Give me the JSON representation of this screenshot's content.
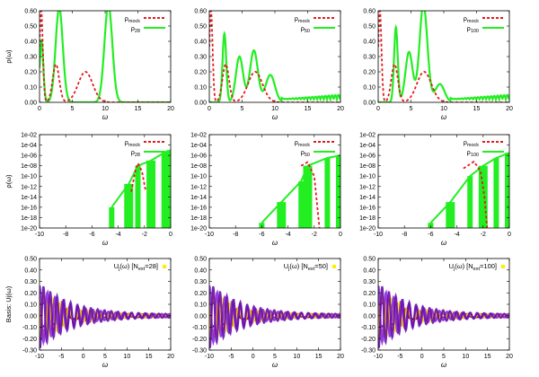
{
  "colors": {
    "mock": "#e41a1c",
    "recon": "#22ee22",
    "frame": "#000000"
  },
  "chart_data": [
    {
      "type": "line",
      "ylabel": "ρ(ω)",
      "xlabel": "ω",
      "xlim": [
        0,
        20
      ],
      "ylim": [
        0,
        0.6
      ],
      "xticks": [
        "0",
        "5",
        "10",
        "15",
        "20"
      ],
      "yticks": [
        "0.00",
        "0.10",
        "0.20",
        "0.30",
        "0.40",
        "0.50",
        "0.60"
      ],
      "series": [
        {
          "name": "ρmock",
          "peaks": [
            {
              "x": 0.25,
              "y": 0.6
            },
            {
              "x": 2.5,
              "y": 0.25
            },
            {
              "x": 7.0,
              "y": 0.2
            }
          ]
        },
        {
          "name": "ρ28",
          "peaks": [
            {
              "x": 0.3,
              "y": 0.4
            },
            {
              "x": 3.0,
              "y": 0.62
            },
            {
              "x": 10.5,
              "y": 0.64
            }
          ]
        }
      ],
      "legend": [
        {
          "base": "ρ",
          "sub": "mock",
          "kind": "mock"
        },
        {
          "base": "ρ",
          "sub": "28",
          "kind": "recon"
        }
      ]
    },
    {
      "type": "line",
      "ylabel": "",
      "xlabel": "ω",
      "xlim": [
        0,
        20
      ],
      "ylim": [
        0,
        0.6
      ],
      "xticks": [
        "0",
        "5",
        "10",
        "15",
        "20"
      ],
      "yticks": [
        "0.00",
        "0.10",
        "0.20",
        "0.30",
        "0.40",
        "0.50",
        "0.60"
      ],
      "series": [
        {
          "name": "ρmock",
          "peaks": [
            {
              "x": 0.25,
              "y": 0.6
            },
            {
              "x": 2.5,
              "y": 0.25
            },
            {
              "x": 7.0,
              "y": 0.2
            }
          ]
        },
        {
          "name": "ρ50",
          "peaks": [
            {
              "x": 2.3,
              "y": 0.45
            },
            {
              "x": 4.6,
              "y": 0.3
            },
            {
              "x": 6.8,
              "y": 0.34
            },
            {
              "x": 9.3,
              "y": 0.18
            }
          ]
        }
      ],
      "legend": [
        {
          "base": "ρ",
          "sub": "mock",
          "kind": "mock"
        },
        {
          "base": "ρ",
          "sub": "50",
          "kind": "recon"
        }
      ]
    },
    {
      "type": "line",
      "ylabel": "",
      "xlabel": "ω",
      "xlim": [
        0,
        20
      ],
      "ylim": [
        0,
        0.6
      ],
      "xticks": [
        "0",
        "5",
        "10",
        "15",
        "20"
      ],
      "yticks": [
        "0.00",
        "0.10",
        "0.20",
        "0.30",
        "0.40",
        "0.50",
        "0.60"
      ],
      "series": [
        {
          "name": "ρmock",
          "peaks": [
            {
              "x": 0.25,
              "y": 0.6
            },
            {
              "x": 2.5,
              "y": 0.25
            },
            {
              "x": 7.0,
              "y": 0.2
            }
          ]
        },
        {
          "name": "ρ100",
          "peaks": [
            {
              "x": 2.7,
              "y": 0.49
            },
            {
              "x": 4.7,
              "y": 0.33
            },
            {
              "x": 6.9,
              "y": 0.64
            },
            {
              "x": 9.4,
              "y": 0.12
            }
          ]
        }
      ],
      "legend": [
        {
          "base": "ρ",
          "sub": "mock",
          "kind": "mock"
        },
        {
          "base": "ρ",
          "sub": "100",
          "kind": "recon"
        }
      ]
    },
    {
      "type": "line",
      "ylabel": "ρ(ω)",
      "xlabel": "ω",
      "yscale": "log",
      "xlim": [
        -10,
        0
      ],
      "ylim": [
        1e-20,
        0.01
      ],
      "xticks": [
        "-10",
        "-8",
        "-6",
        "-4",
        "-2",
        "0"
      ],
      "yticks": [
        "1e-02",
        "1e-04",
        "1e-06",
        "1e-08",
        "1e-10",
        "1e-12",
        "1e-14",
        "1e-16",
        "1e-18",
        "1e-20"
      ],
      "series": [
        {
          "name": "ρmock",
          "points": [
            {
              "x": -3.0,
              "y": -13
            },
            {
              "x": -2.7,
              "y": -9
            },
            {
              "x": -2.5,
              "y": -7.5
            },
            {
              "x": -2.2,
              "y": -9
            },
            {
              "x": -1.9,
              "y": -13
            }
          ]
        },
        {
          "name": "ρ28",
          "points": [
            {
              "x": -4.5,
              "y": -16
            },
            {
              "x": -3.2,
              "y": -11.5
            },
            {
              "x": -2.5,
              "y": -8
            },
            {
              "x": -1.5,
              "y": -7
            },
            {
              "x": -0.5,
              "y": -5.5
            },
            {
              "x": 0,
              "y": -5
            }
          ]
        }
      ],
      "legend": [
        {
          "base": "ρ",
          "sub": "mock",
          "kind": "mock"
        },
        {
          "base": "ρ",
          "sub": "28",
          "kind": "recon"
        }
      ]
    },
    {
      "type": "line",
      "ylabel": "",
      "xlabel": "ω",
      "yscale": "log",
      "xlim": [
        -10,
        0
      ],
      "ylim": [
        1e-20,
        0.01
      ],
      "xticks": [
        "-10",
        "-8",
        "-6",
        "-4",
        "-2",
        "0"
      ],
      "yticks": [
        "1e-02",
        "1e-04",
        "1e-06",
        "1e-08",
        "1e-10",
        "1e-12",
        "1e-14",
        "1e-16",
        "1e-18",
        "1e-20"
      ],
      "series": [
        {
          "name": "ρmock",
          "points": [
            {
              "x": -3.0,
              "y": -8
            },
            {
              "x": -2.5,
              "y": -7.3
            },
            {
              "x": -2.0,
              "y": -10
            },
            {
              "x": -1.8,
              "y": -15
            },
            {
              "x": -1.6,
              "y": -20
            }
          ]
        },
        {
          "name": "ρ50",
          "points": [
            {
              "x": -6.0,
              "y": -19
            },
            {
              "x": -4.5,
              "y": -15
            },
            {
              "x": -3.0,
              "y": -11
            },
            {
              "x": -2.5,
              "y": -8
            },
            {
              "x": -1.0,
              "y": -6.5
            },
            {
              "x": 0,
              "y": -6
            }
          ]
        }
      ],
      "legend": [
        {
          "base": "ρ",
          "sub": "mock",
          "kind": "mock"
        },
        {
          "base": "ρ",
          "sub": "50",
          "kind": "recon"
        }
      ]
    },
    {
      "type": "line",
      "ylabel": "",
      "xlabel": "ω",
      "yscale": "log",
      "xlim": [
        -10,
        0
      ],
      "ylim": [
        1e-20,
        0.01
      ],
      "xticks": [
        "-10",
        "-8",
        "-6",
        "-4",
        "-2",
        "0"
      ],
      "yticks": [
        "1e-02",
        "1e-04",
        "1e-06",
        "1e-08",
        "1e-10",
        "1e-12",
        "1e-14",
        "1e-16",
        "1e-18",
        "1e-20"
      ],
      "series": [
        {
          "name": "ρmock",
          "points": [
            {
              "x": -3.5,
              "y": -8.5
            },
            {
              "x": -2.7,
              "y": -7.2
            },
            {
              "x": -2.2,
              "y": -9
            },
            {
              "x": -1.9,
              "y": -14
            },
            {
              "x": -1.7,
              "y": -20
            }
          ]
        },
        {
          "name": "ρ100",
          "points": [
            {
              "x": -6.0,
              "y": -19
            },
            {
              "x": -4.5,
              "y": -15
            },
            {
              "x": -3.0,
              "y": -10
            },
            {
              "x": -2.0,
              "y": -8
            },
            {
              "x": -1.0,
              "y": -6.5
            },
            {
              "x": 0,
              "y": -5.5
            }
          ]
        }
      ],
      "legend": [
        {
          "base": "ρ",
          "sub": "mock",
          "kind": "mock"
        },
        {
          "base": "ρ",
          "sub": "100",
          "kind": "recon"
        }
      ]
    },
    {
      "type": "line",
      "ylabel": "Basis: Uj(ω)",
      "xlabel": "ω",
      "xlim": [
        -10,
        20
      ],
      "ylim": [
        -0.3,
        0.5
      ],
      "xticks": [
        "-10",
        "-5",
        "0",
        "5",
        "10",
        "15",
        "20"
      ],
      "yticks": [
        "0.50",
        "0.40",
        "0.30",
        "0.20",
        "0.10",
        "0.00",
        "-0.10",
        "-0.20",
        "-0.30"
      ],
      "legend_text": {
        "a": "U",
        "b": "j",
        "c": "(ω) [N",
        "d": "ext",
        "e": "=28]"
      },
      "series": [
        {
          "name": "Uj(ω)",
          "amplitude_at_left": 0.3
        }
      ]
    },
    {
      "type": "line",
      "ylabel": "",
      "xlabel": "ω",
      "xlim": [
        -10,
        20
      ],
      "ylim": [
        -0.3,
        0.5
      ],
      "xticks": [
        "-10",
        "-5",
        "0",
        "5",
        "10",
        "15",
        "20"
      ],
      "yticks": [
        "0.50",
        "0.40",
        "0.30",
        "0.20",
        "0.10",
        "0.00",
        "-0.10",
        "-0.20",
        "-0.30"
      ],
      "legend_text": {
        "a": "U",
        "b": "j",
        "c": "(ω) [N",
        "d": "ext",
        "e": "=50]"
      },
      "series": [
        {
          "name": "Uj(ω)",
          "amplitude_at_left": 0.3
        }
      ]
    },
    {
      "type": "line",
      "ylabel": "",
      "xlabel": "ω",
      "xlim": [
        -10,
        20
      ],
      "ylim": [
        -0.3,
        0.5
      ],
      "xticks": [
        "-10",
        "-5",
        "0",
        "5",
        "10",
        "15",
        "20"
      ],
      "yticks": [
        "0.50",
        "0.40",
        "0.30",
        "0.20",
        "0.10",
        "0.00",
        "-0.10",
        "-0.20",
        "-0.30"
      ],
      "legend_text": {
        "a": "U",
        "b": "j",
        "c": "(ω) [N",
        "d": "ext",
        "e": "=100]"
      },
      "series": [
        {
          "name": "Uj(ω)",
          "amplitude_at_left": 0.3
        }
      ]
    }
  ]
}
